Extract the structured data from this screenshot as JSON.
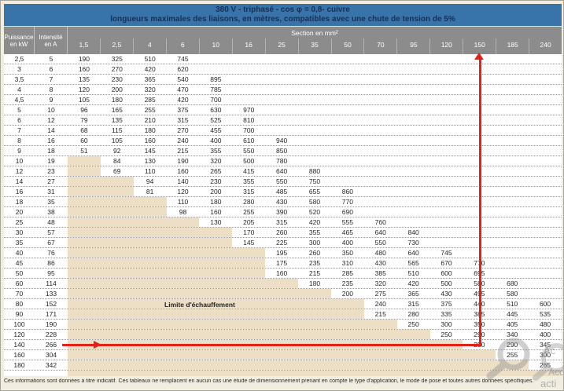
{
  "header": {
    "title_line1": "380 V - triphasé - cos φ  = 0,8- cuivre",
    "title_line2": "longueurs maximales des liaisons, en mètres, compatibles avec une chute de tension de 5%",
    "section_label": "Section en mm²",
    "power_label": [
      "Puissance",
      "en kW"
    ],
    "current_label": [
      "Intensité",
      "en A"
    ],
    "sections": [
      "1,5",
      "2,5",
      "4",
      "6",
      "10",
      "16",
      "25",
      "35",
      "50",
      "70",
      "95",
      "120",
      "150",
      "185",
      "240"
    ]
  },
  "table": {
    "rows": [
      {
        "kw": "2,5",
        "a": "5",
        "v": [
          "190",
          "325",
          "510",
          "745",
          "",
          "",
          "",
          "",
          "",
          "",
          "",
          "",
          "",
          "",
          ""
        ]
      },
      {
        "kw": "3",
        "a": "6",
        "v": [
          "160",
          "270",
          "420",
          "620",
          "",
          "",
          "",
          "",
          "",
          "",
          "",
          "",
          "",
          "",
          ""
        ]
      },
      {
        "kw": "3,5",
        "a": "7",
        "v": [
          "135",
          "230",
          "365",
          "540",
          "895",
          "",
          "",
          "",
          "",
          "",
          "",
          "",
          "",
          "",
          ""
        ]
      },
      {
        "kw": "4",
        "a": "8",
        "v": [
          "120",
          "200",
          "320",
          "470",
          "785",
          "",
          "",
          "",
          "",
          "",
          "",
          "",
          "",
          "",
          ""
        ]
      },
      {
        "kw": "4,5",
        "a": "9",
        "v": [
          "105",
          "180",
          "285",
          "420",
          "700",
          "",
          "",
          "",
          "",
          "",
          "",
          "",
          "",
          "",
          ""
        ]
      },
      {
        "kw": "5",
        "a": "10",
        "v": [
          "96",
          "165",
          "255",
          "375",
          "630",
          "970",
          "",
          "",
          "",
          "",
          "",
          "",
          "",
          "",
          ""
        ]
      },
      {
        "kw": "6",
        "a": "12",
        "v": [
          "79",
          "135",
          "210",
          "315",
          "525",
          "810",
          "",
          "",
          "",
          "",
          "",
          "",
          "",
          "",
          ""
        ]
      },
      {
        "kw": "7",
        "a": "14",
        "v": [
          "68",
          "115",
          "180",
          "270",
          "455",
          "700",
          "",
          "",
          "",
          "",
          "",
          "",
          "",
          "",
          ""
        ]
      },
      {
        "kw": "8",
        "a": "16",
        "v": [
          "60",
          "105",
          "160",
          "240",
          "400",
          "610",
          "940",
          "",
          "",
          "",
          "",
          "",
          "",
          "",
          ""
        ]
      },
      {
        "kw": "9",
        "a": "18",
        "v": [
          "51",
          "92",
          "145",
          "215",
          "355",
          "550",
          "850",
          "",
          "",
          "",
          "",
          "",
          "",
          "",
          ""
        ]
      },
      {
        "kw": "10",
        "a": "19",
        "v": [
          "",
          "84",
          "130",
          "190",
          "320",
          "500",
          "780",
          "",
          "",
          "",
          "",
          "",
          "",
          "",
          ""
        ]
      },
      {
        "kw": "12",
        "a": "23",
        "v": [
          "",
          "69",
          "110",
          "160",
          "265",
          "415",
          "640",
          "880",
          "",
          "",
          "",
          "",
          "",
          "",
          ""
        ]
      },
      {
        "kw": "14",
        "a": "27",
        "v": [
          "",
          "",
          "94",
          "140",
          "230",
          "355",
          "550",
          "750",
          "",
          "",
          "",
          "",
          "",
          "",
          ""
        ]
      },
      {
        "kw": "16",
        "a": "31",
        "v": [
          "",
          "",
          "81",
          "120",
          "200",
          "315",
          "485",
          "655",
          "860",
          "",
          "",
          "",
          "",
          "",
          ""
        ]
      },
      {
        "kw": "18",
        "a": "35",
        "v": [
          "",
          "",
          "",
          "110",
          "180",
          "280",
          "430",
          "580",
          "770",
          "",
          "",
          "",
          "",
          "",
          ""
        ]
      },
      {
        "kw": "20",
        "a": "38",
        "v": [
          "",
          "",
          "",
          "98",
          "160",
          "255",
          "390",
          "520",
          "690",
          "",
          "",
          "",
          "",
          "",
          ""
        ]
      },
      {
        "kw": "25",
        "a": "48",
        "v": [
          "",
          "",
          "",
          "",
          "130",
          "205",
          "315",
          "420",
          "555",
          "760",
          "",
          "",
          "",
          "",
          ""
        ]
      },
      {
        "kw": "30",
        "a": "57",
        "v": [
          "",
          "",
          "",
          "",
          "",
          "170",
          "260",
          "355",
          "465",
          "640",
          "840",
          "",
          "",
          "",
          ""
        ]
      },
      {
        "kw": "35",
        "a": "67",
        "v": [
          "",
          "",
          "",
          "",
          "",
          "145",
          "225",
          "300",
          "400",
          "550",
          "730",
          "",
          "",
          "",
          ""
        ]
      },
      {
        "kw": "40",
        "a": "76",
        "v": [
          "",
          "",
          "",
          "",
          "",
          "",
          "195",
          "260",
          "350",
          "480",
          "640",
          "745",
          "",
          "",
          ""
        ]
      },
      {
        "kw": "45",
        "a": "86",
        "v": [
          "",
          "",
          "",
          "",
          "",
          "",
          "175",
          "235",
          "310",
          "430",
          "565",
          "670",
          "770",
          "",
          ""
        ]
      },
      {
        "kw": "50",
        "a": "95",
        "v": [
          "",
          "",
          "",
          "",
          "",
          "",
          "160",
          "215",
          "285",
          "385",
          "510",
          "600",
          "695",
          "",
          ""
        ]
      },
      {
        "kw": "60",
        "a": "114",
        "v": [
          "",
          "",
          "",
          "",
          "",
          "",
          "",
          "180",
          "235",
          "320",
          "420",
          "500",
          "580",
          "680",
          ""
        ]
      },
      {
        "kw": "70",
        "a": "133",
        "v": [
          "",
          "",
          "",
          "",
          "",
          "",
          "",
          "",
          "200",
          "275",
          "365",
          "430",
          "495",
          "580",
          ""
        ]
      },
      {
        "kw": "80",
        "a": "152",
        "v": [
          "",
          "",
          "",
          "",
          "",
          "",
          "",
          "",
          "",
          "240",
          "315",
          "375",
          "440",
          "510",
          "600"
        ]
      },
      {
        "kw": "90",
        "a": "171",
        "v": [
          "",
          "",
          "",
          "",
          "",
          "",
          "",
          "",
          "",
          "215",
          "280",
          "335",
          "385",
          "445",
          "535"
        ]
      },
      {
        "kw": "100",
        "a": "190",
        "v": [
          "",
          "",
          "",
          "",
          "",
          "",
          "",
          "",
          "",
          "",
          "250",
          "300",
          "350",
          "405",
          "480"
        ]
      },
      {
        "kw": "120",
        "a": "228",
        "v": [
          "",
          "",
          "",
          "",
          "",
          "",
          "",
          "",
          "",
          "",
          "",
          "250",
          "290",
          "340",
          "400"
        ]
      },
      {
        "kw": "140",
        "a": "266",
        "v": [
          "",
          "",
          "",
          "",
          "",
          "",
          "",
          "",
          "",
          "",
          "",
          "",
          "250",
          "290",
          "345"
        ]
      },
      {
        "kw": "160",
        "a": "304",
        "v": [
          "",
          "",
          "",
          "",
          "",
          "",
          "",
          "",
          "",
          "",
          "",
          "",
          "",
          "255",
          "300"
        ]
      },
      {
        "kw": "180",
        "a": "342",
        "v": [
          "",
          "",
          "",
          "",
          "",
          "",
          "",
          "",
          "",
          "",
          "",
          "",
          "",
          "",
          "265"
        ]
      }
    ]
  },
  "annotations": {
    "limit_label": "Limite d'échauffement",
    "vertical_arrow_points_to_section": "150",
    "horizontal_arrow_points_from_row_kw": "140"
  },
  "footer": {
    "disclaimer": "Ces informations sont données à titre indicatif. Ces tableaux ne remplacent en aucun cas une étude de dimensionnement prenant en compte le type d'application, le mode de pose et toutes autres données spécifiques."
  },
  "watermark": {
    "fragments": [
      "Ac",
      "Acc",
      "acti"
    ]
  },
  "colors": {
    "header_blue": "#3873a9",
    "header_text": "#14325a",
    "band_gray": "#8c8c8c",
    "beige_zone": "#ecdfc5",
    "accent_red": "#e32119",
    "page_background": "#f1eee0"
  }
}
